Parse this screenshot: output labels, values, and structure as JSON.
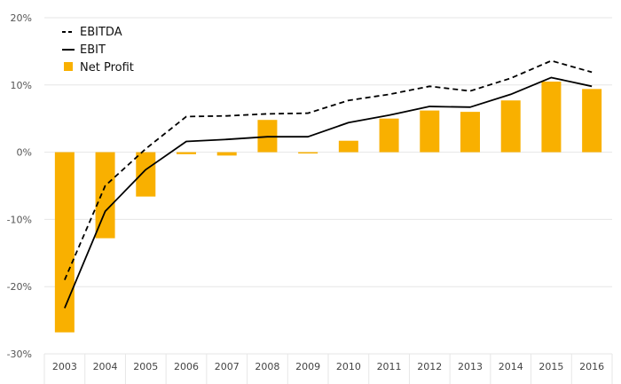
{
  "chart_data": {
    "type": "bar",
    "title": "",
    "xlabel": "",
    "ylabel": "",
    "categories": [
      "2003",
      "2004",
      "2005",
      "2006",
      "2007",
      "2008",
      "2009",
      "2010",
      "2011",
      "2012",
      "2013",
      "2014",
      "2015",
      "2016"
    ],
    "ylim": [
      -30,
      20
    ],
    "yticks": [
      -30,
      -20,
      -10,
      0,
      10,
      20
    ],
    "ytick_labels": [
      "-30%",
      "-20%",
      "-10%",
      "0%",
      "10%",
      "20%"
    ],
    "grid": true,
    "legend_position": "top-left",
    "series": [
      {
        "name": "EBITDA",
        "kind": "line",
        "style": "dashed",
        "color": "#000000",
        "values": [
          -19.0,
          -5.0,
          0.5,
          5.3,
          5.4,
          5.7,
          5.8,
          7.7,
          8.6,
          9.8,
          9.1,
          11.0,
          13.6,
          11.9
        ]
      },
      {
        "name": "EBIT",
        "kind": "line",
        "style": "solid",
        "color": "#000000",
        "values": [
          -23.2,
          -8.8,
          -2.6,
          1.6,
          1.9,
          2.3,
          2.3,
          4.4,
          5.5,
          6.8,
          6.7,
          8.6,
          11.1,
          9.8
        ]
      },
      {
        "name": "Net Profit",
        "kind": "bar",
        "color": "#f9b000",
        "values": [
          -26.8,
          -12.8,
          -6.6,
          -0.3,
          -0.5,
          4.8,
          -0.1,
          1.7,
          5.0,
          6.2,
          6.0,
          7.7,
          10.5,
          9.4
        ]
      }
    ]
  }
}
